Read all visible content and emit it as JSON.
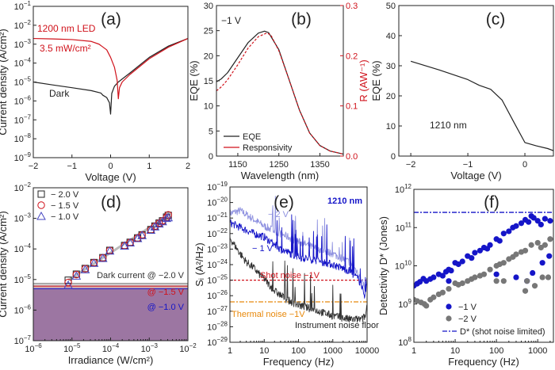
{
  "colors": {
    "black": "#222222",
    "red": "#d0121b",
    "blue": "#1515c8",
    "lightblue": "#8f92e0",
    "grey": "#777777",
    "orange": "#e8890c"
  },
  "chart_data": [
    {
      "id": "a",
      "panel_label": "(a)",
      "type": "line",
      "xlabel": "Voltage (V)",
      "ylabel": "Current density (A/cm²)",
      "xscale": "linear",
      "yscale": "log",
      "xlim": [
        -2,
        2
      ],
      "ylim": [
        1e-09,
        0.1
      ],
      "xticks": [
        -2,
        -1,
        0,
        1,
        2
      ],
      "yticks_pow10": [
        -9,
        -8,
        -7,
        -6,
        -5,
        -4,
        -3,
        -2,
        -1
      ],
      "annotations": [
        "1200 nm LED",
        "3.5 mW/cm²",
        "Dark"
      ],
      "series": [
        {
          "name": "Dark",
          "color": "#222222",
          "x": [
            -2,
            -1.5,
            -1,
            -0.5,
            -0.25,
            -0.2,
            -0.1,
            -0.03,
            0,
            0.03,
            0.1,
            0.2,
            0.5,
            1,
            1.5,
            2
          ],
          "y": [
            1e-05,
            7e-06,
            5e-06,
            3.5e-06,
            2.6e-06,
            2e-06,
            1.5e-06,
            8e-07,
            2e-07,
            2.5e-06,
            6e-06,
            1e-05,
            3e-05,
            0.0002,
            0.0008,
            0.002
          ]
        },
        {
          "name": "1200 nm LED, 3.5 mW/cm²",
          "color": "#d0121b",
          "x": [
            -2,
            -1.5,
            -1,
            -0.5,
            -0.3,
            -0.1,
            0,
            0.1,
            0.17,
            0.2,
            0.23,
            0.3,
            0.5,
            1,
            1.5,
            2
          ],
          "y": [
            0.002,
            0.0019,
            0.00175,
            0.0014,
            0.001,
            0.0005,
            0.0002,
            6e-05,
            1.2e-05,
            1.3e-06,
            5e-06,
            1e-05,
            2.5e-05,
            0.00017,
            0.0007,
            0.002
          ]
        }
      ]
    },
    {
      "id": "b",
      "panel_label": "(b)",
      "type": "line",
      "xlabel": "Wavelength (nm)",
      "ylabel": "EQE (%)",
      "y2label": "R (AW⁻¹)",
      "xscale": "linear",
      "yscale": "linear",
      "xlim": [
        1098,
        1407
      ],
      "ylim": [
        0,
        30
      ],
      "y2lim": [
        0,
        0.3
      ],
      "xticks": [
        1150,
        1250,
        1350
      ],
      "yticks": [
        0,
        5,
        10,
        15,
        20,
        25,
        30
      ],
      "y2ticks": [
        "0.0",
        "0.1",
        "0.2",
        "0.3"
      ],
      "annotations": [
        "−1 V"
      ],
      "legend": [
        "EQE",
        "Responsivity"
      ],
      "series": [
        {
          "name": "EQE",
          "axis": "left",
          "color": "#222222",
          "x": [
            1098,
            1110,
            1125,
            1150,
            1175,
            1200,
            1215,
            1225,
            1250,
            1275,
            1300,
            1325,
            1350,
            1375,
            1407
          ],
          "y": [
            14.8,
            15.4,
            16.6,
            19.6,
            22.6,
            24.5,
            24.9,
            24.6,
            21.2,
            15.2,
            9.2,
            4.6,
            2.1,
            1.0,
            0.4
          ]
        },
        {
          "name": "Responsivity",
          "axis": "right",
          "color": "#d0121b",
          "x": [
            1098,
            1110,
            1125,
            1150,
            1175,
            1200,
            1220,
            1230,
            1250,
            1275,
            1300,
            1325,
            1350,
            1375,
            1407
          ],
          "y": [
            0.13,
            0.138,
            0.152,
            0.182,
            0.215,
            0.238,
            0.245,
            0.242,
            0.21,
            0.152,
            0.092,
            0.046,
            0.021,
            0.01,
            0.004
          ]
        }
      ]
    },
    {
      "id": "c",
      "panel_label": "(c)",
      "type": "line",
      "xlabel": "Voltage (V)",
      "ylabel": "EQE (%)",
      "xscale": "linear",
      "yscale": "linear",
      "xlim": [
        -2.21,
        0.5
      ],
      "ylim": [
        0,
        50
      ],
      "xticks": [
        -2,
        -1,
        0
      ],
      "yticks": [
        0,
        10,
        20,
        30,
        40,
        50
      ],
      "annotations": [
        "1210 nm"
      ],
      "series": [
        {
          "name": "EQE",
          "color": "#222222",
          "x": [
            -2,
            -1.5,
            -1,
            -0.8,
            -0.6,
            -0.4,
            -0.2,
            0,
            0.2,
            0.4,
            0.5
          ],
          "y": [
            31.5,
            28.6,
            25.4,
            23.5,
            22.2,
            18.6,
            11.5,
            4.5,
            3.4,
            2.5,
            1.8
          ]
        }
      ]
    },
    {
      "id": "d",
      "panel_label": "(d)",
      "type": "scatter",
      "xlabel": "Irradiance (W/cm²)",
      "ylabel": "Current density (A/cm²)",
      "xscale": "log",
      "yscale": "log",
      "xlim": [
        1e-06,
        0.01
      ],
      "ylim": [
        1e-07,
        0.01
      ],
      "xticks_pow10": [
        -6,
        -5,
        -4,
        -3,
        -2
      ],
      "yticks_pow10": [
        -7,
        -6,
        -5,
        -4,
        -3,
        -2
      ],
      "legend": [
        "− 2.0 V",
        "− 1.5 V",
        "− 1.0 V"
      ],
      "dark_current": [
        {
          "label": "Dark current @ −2.0 V",
          "value": 7.5e-06,
          "color": "#888888"
        },
        {
          "label": "@ −1.5 V",
          "value": 6.1e-06,
          "color": "#d0121b"
        },
        {
          "label": "@ −1.0 V",
          "value": 5e-06,
          "color": "#1515c8"
        }
      ],
      "x": [
        8e-06,
        1.3e-05,
        2.2e-05,
        3.7e-05,
        6.3e-05,
        9.5e-05,
        0.00023,
        0.00032,
        0.0005,
        0.00065,
        0.0011,
        0.0014,
        0.0018,
        0.0022,
        0.0028,
        0.0031
      ],
      "series": [
        {
          "name": "− 2.0 V",
          "marker": "square",
          "color": "#222222",
          "y": [
            9.5e-06,
            1.5e-05,
            2.3e-05,
            3.6e-05,
            5.2e-05,
            9e-05,
            0.00013,
            0.000165,
            0.00023,
            0.00029,
            0.00043,
            0.00056,
            0.0007,
            0.00083,
            0.0011,
            0.00125
          ]
        },
        {
          "name": "− 1.5 V",
          "marker": "circle",
          "color": "#d0121b",
          "y": [
            8e-06,
            1.45e-05,
            2.25e-05,
            3.55e-05,
            5.1e-05,
            8.9e-05,
            0.000128,
            0.000162,
            0.000227,
            0.000285,
            0.00042,
            0.00055,
            0.00069,
            0.00082,
            0.00108,
            0.0013
          ]
        },
        {
          "name": "− 1.0 V",
          "marker": "triangle",
          "color": "#4545c0",
          "y": [
            6.5e-06,
            1.3e-05,
            2.1e-05,
            3.4e-05,
            4.9e-05,
            8.6e-05,
            0.000125,
            0.000158,
            0.00022,
            0.000275,
            0.00041,
            0.00053,
            0.00066,
            0.00078,
            0.001,
            0.00105
          ]
        }
      ]
    },
    {
      "id": "e",
      "panel_label": "(e)",
      "type": "line",
      "xlabel": "Frequency (Hz)",
      "ylabel": "Sᵢ (A²/Hz)",
      "xscale": "log",
      "yscale": "log",
      "xlim": [
        1,
        10000
      ],
      "ylim": [
        1e-29,
        1e-19
      ],
      "xticks": [
        "1",
        "10",
        "100",
        "1000",
        "10000"
      ],
      "yticks_pow10": [
        -29,
        -28,
        -27,
        -26,
        -25,
        -24,
        -23,
        -22,
        -21,
        -20,
        -19
      ],
      "annotations": [
        "1210 nm",
        "− 2 V",
        "− 1 V",
        "Shot noise −1V",
        "Thermal noise −1V",
        "Instrument noise floor"
      ],
      "hlines": [
        {
          "name": "Shot noise −1V",
          "value": 1e-25,
          "color": "#d0121b",
          "style": "dashed"
        },
        {
          "name": "Thermal noise −1V",
          "value": 4e-27,
          "color": "#e8890c",
          "style": "dashdot"
        }
      ],
      "series": [
        {
          "name": "− 2 V",
          "color": "#8f92e0",
          "x": [
            1,
            2,
            5,
            10,
            30,
            100,
            300,
            1000,
            3000,
            5000,
            7000,
            9000,
            10000
          ],
          "y": [
            2e-21,
            3e-21,
            8e-22,
            3e-22,
            1e-22,
            3e-23,
            1.2e-23,
            5e-24,
            1.5e-24,
            4e-25,
            1e-25,
            3e-26,
            2e-25
          ]
        },
        {
          "name": "− 1 V",
          "color": "#1515c8",
          "x": [
            1,
            2,
            5,
            10,
            30,
            100,
            300,
            1000,
            3000,
            5000,
            7000,
            8500,
            10000
          ],
          "y": [
            5e-22,
            2.5e-22,
            1e-22,
            6e-23,
            1e-23,
            3e-24,
            2e-24,
            1e-24,
            4e-25,
            1.5e-25,
            5e-26,
            4e-27,
            1e-25
          ]
        },
        {
          "name": "Instrument noise floor",
          "color": "#333333",
          "x": [
            1,
            2,
            3,
            5,
            7,
            10,
            20,
            50,
            100,
            300,
            1000,
            3000,
            7000,
            9000,
            10000
          ],
          "y": [
            5e-23,
            5e-24,
            1.5e-24,
            6e-25,
            2.5e-25,
            1.2e-25,
            2e-26,
            5e-27,
            2.5e-27,
            1.2e-27,
            5e-28,
            3e-28,
            3e-28,
            5e-28,
            3e-27
          ]
        }
      ]
    },
    {
      "id": "f",
      "panel_label": "(f)",
      "type": "scatter",
      "xlabel": "Frequency (Hz)",
      "ylabel": "Detectivity D* (Jones)",
      "xscale": "log",
      "yscale": "log",
      "xlim": [
        1,
        2400
      ],
      "ylim": [
        100000000.0,
        1000000000000.0
      ],
      "xticks": [
        "1",
        "10",
        "100",
        "1000"
      ],
      "yticks_pow10": [
        8,
        9,
        10,
        11,
        12
      ],
      "legend": [
        "−1 V",
        "−2 V",
        "D* (shot noise limited)"
      ],
      "hlines": [
        {
          "name": "D* (shot noise limited)",
          "value": 250000000000.0,
          "color": "#1515c8",
          "style": "dashdot"
        }
      ],
      "series": [
        {
          "name": "−1 V",
          "color": "#1515c8",
          "points": [
            [
              1,
              3000000000.0
            ],
            [
              1.2,
              3400000000.0
            ],
            [
              1.4,
              3800000000.0
            ],
            [
              1.7,
              4600000000.0
            ],
            [
              2,
              4000000000.0
            ],
            [
              2.5,
              4500000000.0
            ],
            [
              3,
              5000000000.0
            ],
            [
              4,
              6000000000.0
            ],
            [
              5,
              5500000000.0
            ],
            [
              6,
              7000000000.0
            ],
            [
              7,
              8000000000.0
            ],
            [
              8,
              7500000000.0
            ],
            [
              10,
              12000000000.0
            ],
            [
              12,
              11000000000.0
            ],
            [
              15,
              13000000000.0
            ],
            [
              20,
              18000000000.0
            ],
            [
              25,
              16000000000.0
            ],
            [
              30,
              22000000000.0
            ],
            [
              40,
              25000000000.0
            ],
            [
              50,
              30000000000.0
            ],
            [
              60,
              28000000000.0
            ],
            [
              70,
              35000000000.0
            ],
            [
              100,
              50000000000.0
            ],
            [
              120,
              45000000000.0
            ],
            [
              150,
              70000000000.0
            ],
            [
              200,
              80000000000.0
            ],
            [
              250,
              100000000000.0
            ],
            [
              300,
              110000000000.0
            ],
            [
              400,
              130000000000.0
            ],
            [
              500,
              160000000000.0
            ],
            [
              600,
              140000000000.0
            ],
            [
              700,
              200000000000.0
            ],
            [
              800,
              180000000000.0
            ],
            [
              1000,
              150000000000.0
            ],
            [
              1200,
              120000000000.0
            ],
            [
              1500,
              170000000000.0
            ],
            [
              2000,
              150000000000.0
            ],
            [
              7,
              4000000000.0
            ],
            [
              100,
              6000000000.0
            ],
            [
              300,
              5000000000.0
            ],
            [
              550,
              4000000000.0
            ],
            [
              750,
              6500000000.0
            ],
            [
              1300,
              12000000000.0
            ],
            [
              1900,
              18000000000.0
            ]
          ]
        },
        {
          "name": "−2 V",
          "color": "#777777",
          "points": [
            [
              1,
              1300000000.0
            ],
            [
              1.2,
              1200000000.0
            ],
            [
              1.5,
              1100000000.0
            ],
            [
              1.8,
              1000000000.0
            ],
            [
              2,
              900000000.0
            ],
            [
              2.5,
              1300000000.0
            ],
            [
              3,
              1500000000.0
            ],
            [
              4,
              1800000000.0
            ],
            [
              5,
              2000000000.0
            ],
            [
              7,
              2500000000.0
            ],
            [
              10,
              3500000000.0
            ],
            [
              12,
              3200000000.0
            ],
            [
              15,
              3500000000.0
            ],
            [
              20,
              4000000000.0
            ],
            [
              25,
              4500000000.0
            ],
            [
              30,
              5000000000.0
            ],
            [
              40,
              5500000000.0
            ],
            [
              50,
              6000000000.0
            ],
            [
              70,
              8000000000.0
            ],
            [
              100,
              10000000000.0
            ],
            [
              120,
              11000000000.0
            ],
            [
              150,
              12000000000.0
            ],
            [
              200,
              15000000000.0
            ],
            [
              250,
              17000000000.0
            ],
            [
              300,
              20000000000.0
            ],
            [
              400,
              23000000000.0
            ],
            [
              500,
              25000000000.0
            ],
            [
              700,
              35000000000.0
            ],
            [
              1000,
              40000000000.0
            ],
            [
              1200,
              30000000000.0
            ],
            [
              1500,
              35000000000.0
            ],
            [
              2000,
              50000000000.0
            ],
            [
              100,
              4000000000.0
            ],
            [
              150,
              4000000000.0
            ],
            [
              500,
              2200000000.0
            ],
            [
              550,
              4000000000.0
            ],
            [
              850,
              3000000000.0
            ],
            [
              1300,
              5000000000.0
            ],
            [
              1800,
              5000000000.0
            ]
          ]
        }
      ]
    }
  ]
}
